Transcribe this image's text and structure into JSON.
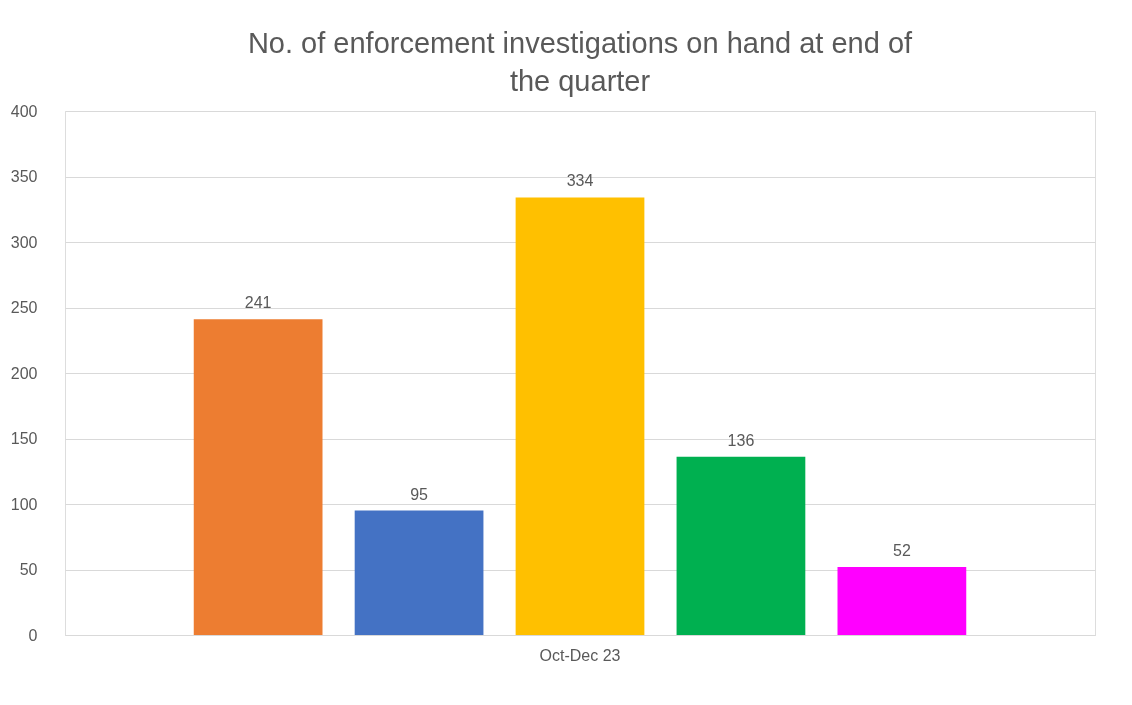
{
  "chart_data": {
    "type": "bar",
    "title": "No. of enforcement investigations on hand at end of the quarter",
    "categories": [
      "Oct-Dec 23"
    ],
    "series": [
      {
        "color": "#ed7d31",
        "values": [
          241
        ]
      },
      {
        "color": "#4472c4",
        "values": [
          95
        ]
      },
      {
        "color": "#ffc000",
        "values": [
          334
        ]
      },
      {
        "color": "#00b050",
        "values": [
          136
        ]
      },
      {
        "color": "#ff00ff",
        "values": [
          52
        ]
      }
    ],
    "ylim": [
      0,
      400
    ],
    "yticks": [
      0,
      50,
      100,
      150,
      200,
      250,
      300,
      350,
      400
    ],
    "grid": "y",
    "data_labels": true
  }
}
